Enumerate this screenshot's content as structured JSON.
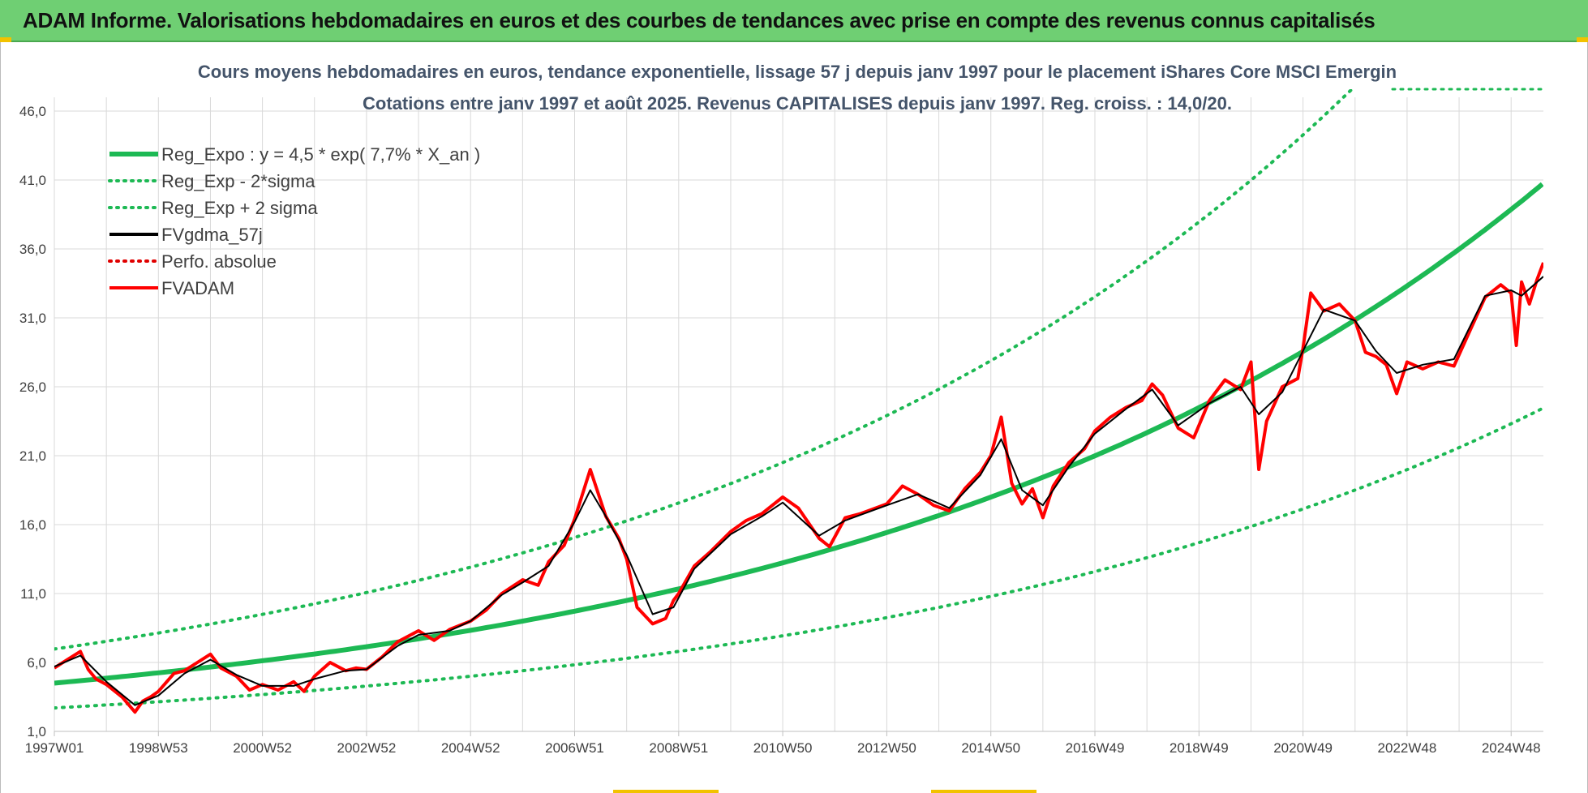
{
  "header": {
    "title": "ADAM Informe. Valorisations hebdomadaires en euros et des courbes de tendances avec prise en compte des revenus connus capitalisés"
  },
  "colors": {
    "banner": "#6fcf73",
    "trend": "#1db954",
    "smooth": "#000000",
    "perf": "#e00000",
    "fvadam": "#ff0000",
    "grid": "#d9d9d9"
  },
  "chart_data": {
    "type": "line",
    "title": "Cours moyens hebdomadaires en euros, tendance exponentielle, lissage 57 j depuis janv 1997 pour le placement iShares Core MSCI Emergin",
    "subtitle": "Cotations entre janv 1997 et août 2025. Revenus CAPITALISES depuis janv 1997. Reg. croiss. : 14,0/20.",
    "xlabel": "",
    "ylabel": "",
    "ylim": [
      1.0,
      47.0
    ],
    "xlim": [
      1997.0,
      2025.62
    ],
    "yticks": [
      "1,0",
      "6,0",
      "11,0",
      "16,0",
      "21,0",
      "26,0",
      "31,0",
      "36,0",
      "41,0",
      "46,0"
    ],
    "ytick_values": [
      1,
      6,
      11,
      16,
      21,
      26,
      31,
      36,
      41,
      46
    ],
    "xticks": [
      "1997W01",
      "1998W53",
      "2000W52",
      "2002W52",
      "2004W52",
      "2006W51",
      "2008W51",
      "2010W50",
      "2012W50",
      "2014W50",
      "2016W49",
      "2018W49",
      "2020W49",
      "2022W48",
      "2024W48"
    ],
    "xtick_values": [
      1997.0,
      1999.0,
      2001.0,
      2003.0,
      2005.0,
      2007.0,
      2009.0,
      2011.0,
      2013.0,
      2015.0,
      2017.0,
      2019.0,
      2021.0,
      2023.0,
      2025.0
    ],
    "grid": true,
    "legend_position": "top-left",
    "legend": [
      {
        "label": "Reg_Expo : y = 4,5 * exp( 7,7% *  X_an )",
        "style": "solid-thick",
        "color": "#1db954"
      },
      {
        "label": "Reg_Exp - 2*sigma",
        "style": "dotted",
        "color": "#1db954"
      },
      {
        "label": "Reg_Exp + 2 sigma",
        "style": "dotted",
        "color": "#1db954"
      },
      {
        "label": "FVgdma_57j",
        "style": "solid",
        "color": "#000000"
      },
      {
        "label": "Perfo. absolue",
        "style": "dotted",
        "color": "#e00000"
      },
      {
        "label": "FVADAM",
        "style": "solid",
        "color": "#ff0000"
      }
    ],
    "trend": {
      "a": 4.5,
      "rate": 0.077,
      "x0": 1997.0,
      "minus_factor": 0.6,
      "plus_factor": 1.55
    },
    "series": [
      {
        "name": "FVADAM",
        "x": [
          1997.0,
          1997.25,
          1997.5,
          1997.65,
          1997.8,
          1998.0,
          1998.3,
          1998.55,
          1998.7,
          1998.85,
          1999.0,
          1999.3,
          1999.5,
          1999.75,
          2000.0,
          2000.2,
          2000.5,
          2000.75,
          2001.0,
          2001.3,
          2001.6,
          2001.8,
          2002.0,
          2002.3,
          2002.6,
          2002.8,
          2003.0,
          2003.3,
          2003.6,
          2004.0,
          2004.3,
          2004.6,
          2005.0,
          2005.3,
          2005.6,
          2006.0,
          2006.3,
          2006.5,
          2006.8,
          2007.0,
          2007.3,
          2007.6,
          2007.85,
          2008.0,
          2008.2,
          2008.5,
          2008.75,
          2008.9,
          2009.0,
          2009.3,
          2009.6,
          2010.0,
          2010.3,
          2010.6,
          2011.0,
          2011.3,
          2011.7,
          2011.9,
          2012.2,
          2012.5,
          2013.0,
          2013.3,
          2013.6,
          2013.9,
          2014.2,
          2014.5,
          2014.8,
          2015.0,
          2015.2,
          2015.4,
          2015.6,
          2015.8,
          2016.0,
          2016.2,
          2016.5,
          2016.8,
          2017.0,
          2017.3,
          2017.6,
          2017.9,
          2018.1,
          2018.3,
          2018.6,
          2018.9,
          2019.2,
          2019.5,
          2019.8,
          2020.0,
          2020.15,
          2020.3,
          2020.6,
          2020.9,
          2021.0,
          2021.15,
          2021.4,
          2021.7,
          2022.0,
          2022.2,
          2022.4,
          2022.6,
          2022.8,
          2023.0,
          2023.3,
          2023.6,
          2023.9,
          2024.2,
          2024.5,
          2024.8,
          2025.0,
          2025.1,
          2025.2,
          2025.35,
          2025.5,
          2025.62
        ],
        "values": [
          5.6,
          6.2,
          6.8,
          5.5,
          4.8,
          4.4,
          3.5,
          2.4,
          3.2,
          3.5,
          3.9,
          5.2,
          5.4,
          6.0,
          6.6,
          5.6,
          5.0,
          4.0,
          4.4,
          4.0,
          4.6,
          3.9,
          5.0,
          6.0,
          5.4,
          5.6,
          5.5,
          6.4,
          7.5,
          8.3,
          7.6,
          8.4,
          9.0,
          9.8,
          11.0,
          12.0,
          11.6,
          13.3,
          14.5,
          16.4,
          20.0,
          16.6,
          15.0,
          13.5,
          10.0,
          8.8,
          9.2,
          10.5,
          11.0,
          13.0,
          14.0,
          15.5,
          16.3,
          16.8,
          18.0,
          17.2,
          15.0,
          14.4,
          16.5,
          16.8,
          17.5,
          18.8,
          18.2,
          17.4,
          17.0,
          18.6,
          19.8,
          21.0,
          23.8,
          19.0,
          17.5,
          18.6,
          16.5,
          18.8,
          20.5,
          21.5,
          22.8,
          23.8,
          24.5,
          25.0,
          26.2,
          25.4,
          23.0,
          22.3,
          25.0,
          26.5,
          25.8,
          27.8,
          20.0,
          23.5,
          26.0,
          26.6,
          28.8,
          32.8,
          31.5,
          32.0,
          30.8,
          28.5,
          28.2,
          27.6,
          25.5,
          27.8,
          27.3,
          27.8,
          27.5,
          30.0,
          32.5,
          33.4,
          32.8,
          29.0,
          33.6,
          32.0,
          33.8,
          35.0
        ]
      },
      {
        "name": "FVgdma_57j",
        "x": [
          1997.0,
          1997.5,
          1998.0,
          1998.55,
          1999.0,
          1999.5,
          2000.0,
          2000.5,
          2001.0,
          2001.6,
          2002.0,
          2002.6,
          2003.0,
          2003.6,
          2004.0,
          2004.6,
          2005.0,
          2005.6,
          2006.0,
          2006.5,
          2007.0,
          2007.3,
          2007.6,
          2008.0,
          2008.5,
          2008.9,
          2009.3,
          2010.0,
          2010.6,
          2011.0,
          2011.7,
          2012.2,
          2013.0,
          2013.6,
          2014.2,
          2014.8,
          2015.2,
          2015.6,
          2016.0,
          2016.5,
          2017.0,
          2017.6,
          2018.1,
          2018.6,
          2019.2,
          2019.8,
          2020.15,
          2020.6,
          2021.0,
          2021.4,
          2022.0,
          2022.4,
          2022.8,
          2023.3,
          2023.9,
          2024.5,
          2025.0,
          2025.2,
          2025.62
        ],
        "values": [
          5.7,
          6.5,
          4.6,
          2.9,
          3.6,
          5.2,
          6.2,
          5.1,
          4.3,
          4.3,
          4.8,
          5.4,
          5.5,
          7.2,
          8.0,
          8.3,
          9.0,
          10.9,
          11.8,
          13.0,
          16.2,
          18.5,
          16.6,
          13.8,
          9.5,
          10.0,
          12.8,
          15.3,
          16.6,
          17.6,
          15.2,
          16.3,
          17.4,
          18.2,
          17.2,
          19.6,
          22.2,
          18.5,
          17.4,
          20.2,
          22.6,
          24.4,
          25.8,
          23.2,
          24.8,
          26.0,
          24.0,
          25.6,
          28.6,
          31.6,
          30.8,
          28.6,
          27.0,
          27.6,
          28.0,
          32.6,
          33.0,
          32.6,
          34.0
        ]
      }
    ]
  }
}
